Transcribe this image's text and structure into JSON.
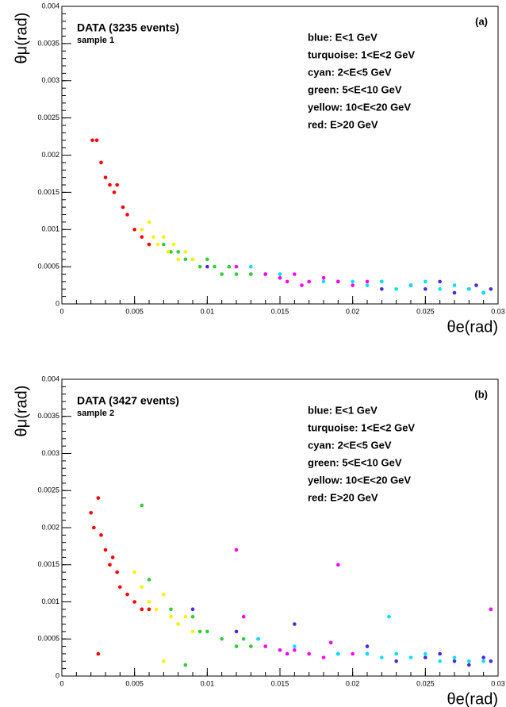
{
  "chart_data": [
    {
      "type": "scatter",
      "title": "DATA  (3235 events)",
      "subtitle": "sample 1",
      "annotation": "(a)",
      "xlabel": "θe(rad)",
      "ylabel": "θμ(rad)",
      "xlim": [
        0,
        0.03
      ],
      "ylim": [
        0,
        0.004
      ],
      "xticks": [
        0,
        0.005,
        0.01,
        0.015,
        0.02,
        0.025,
        0.03
      ],
      "yticks": [
        0,
        0.0005,
        0.001,
        0.0015,
        0.002,
        0.0025,
        0.003,
        0.0035,
        0.004
      ],
      "legend": "upper right",
      "series": [
        {
          "name": "blue: E<1 GeV",
          "color": "#4a2ad8",
          "x": [
            0.01,
            0.014,
            0.019,
            0.022,
            0.024,
            0.025,
            0.026,
            0.027,
            0.028,
            0.0285,
            0.029,
            0.0295
          ],
          "values": [
            0.0005,
            0.0004,
            0.0003,
            0.0002,
            0.00025,
            0.0002,
            0.0003,
            0.00015,
            0.0002,
            0.00025,
            0.00015,
            0.0002
          ]
        },
        {
          "name": "turquoise: 1<E<2 GeV",
          "color": "#ff00ff",
          "x": [
            0.012,
            0.013,
            0.014,
            0.015,
            0.0155,
            0.016,
            0.0165,
            0.017,
            0.018,
            0.019,
            0.02,
            0.021,
            0.022
          ],
          "values": [
            0.0005,
            0.0004,
            0.0004,
            0.00035,
            0.0003,
            0.0004,
            0.00025,
            0.0003,
            0.00035,
            0.0003,
            0.00025,
            0.0003,
            0.0003
          ]
        },
        {
          "name": "cyan: 2<E<5 GeV",
          "color": "#00e0ff",
          "x": [
            0.013,
            0.015,
            0.018,
            0.02,
            0.021,
            0.022,
            0.023,
            0.024,
            0.025,
            0.026,
            0.027,
            0.028,
            0.029
          ],
          "values": [
            0.0005,
            0.0004,
            0.0003,
            0.0003,
            0.00025,
            0.0003,
            0.0002,
            0.00025,
            0.0003,
            0.0002,
            0.00025,
            0.0002,
            0.00015
          ]
        },
        {
          "name": "green: 5<E<10 GeV",
          "color": "#33cc33",
          "x": [
            0.007,
            0.0075,
            0.008,
            0.0085,
            0.009,
            0.0095,
            0.01,
            0.0105,
            0.011,
            0.0115,
            0.012,
            0.013
          ],
          "values": [
            0.0008,
            0.0007,
            0.0007,
            0.0006,
            0.0006,
            0.0005,
            0.0006,
            0.0005,
            0.0004,
            0.0005,
            0.0004,
            0.0004
          ]
        },
        {
          "name": "yellow: 10<E<20 GeV",
          "color": "#f5f500",
          "x": [
            0.0055,
            0.006,
            0.0063,
            0.0066,
            0.007,
            0.0073,
            0.0077,
            0.008,
            0.0085,
            0.009
          ],
          "values": [
            0.001,
            0.0011,
            0.0009,
            0.0008,
            0.0009,
            0.0007,
            0.0008,
            0.0006,
            0.0007,
            0.0006
          ]
        },
        {
          "name": "red: E>20 GeV",
          "color": "#ff0000",
          "x": [
            0.0021,
            0.0024,
            0.0027,
            0.003,
            0.0033,
            0.0036,
            0.0038,
            0.0042,
            0.0045,
            0.005,
            0.0055,
            0.006
          ],
          "values": [
            0.0022,
            0.0022,
            0.0019,
            0.0017,
            0.0016,
            0.0015,
            0.0016,
            0.0013,
            0.0012,
            0.001,
            0.0009,
            0.0008
          ]
        }
      ]
    },
    {
      "type": "scatter",
      "title": "DATA  (3427 events)",
      "subtitle": "sample 2",
      "annotation": "(b)",
      "xlabel": "θe(rad)",
      "ylabel": "θμ(rad)",
      "xlim": [
        0,
        0.03
      ],
      "ylim": [
        0,
        0.004
      ],
      "xticks": [
        0,
        0.005,
        0.01,
        0.015,
        0.02,
        0.025,
        0.03
      ],
      "yticks": [
        0,
        0.0005,
        0.001,
        0.0015,
        0.002,
        0.0025,
        0.003,
        0.0035,
        0.004
      ],
      "legend": "upper right",
      "series": [
        {
          "name": "blue: E<1 GeV",
          "color": "#4a2ad8",
          "x": [
            0.009,
            0.012,
            0.016,
            0.019,
            0.021,
            0.023,
            0.025,
            0.026,
            0.027,
            0.028,
            0.029,
            0.0295
          ],
          "values": [
            0.0009,
            0.0006,
            0.0007,
            0.0003,
            0.0004,
            0.0002,
            0.00025,
            0.0003,
            0.0002,
            0.00015,
            0.00025,
            0.0002
          ]
        },
        {
          "name": "turquoise: 1<E<2 GeV",
          "color": "#ff00ff",
          "x": [
            0.012,
            0.0125,
            0.0135,
            0.014,
            0.015,
            0.0155,
            0.016,
            0.017,
            0.018,
            0.019,
            0.02,
            0.021,
            0.0295,
            0.0185
          ],
          "values": [
            0.0017,
            0.0008,
            0.0005,
            0.0004,
            0.00035,
            0.0003,
            0.00035,
            0.0003,
            0.00025,
            0.0015,
            0.0003,
            0.0003,
            0.0009,
            0.00045
          ]
        },
        {
          "name": "cyan: 2<E<5 GeV",
          "color": "#00e0ff",
          "x": [
            0.0135,
            0.016,
            0.019,
            0.021,
            0.022,
            0.023,
            0.024,
            0.025,
            0.026,
            0.027,
            0.028,
            0.029,
            0.0225
          ],
          "values": [
            0.0005,
            0.0004,
            0.0003,
            0.0003,
            0.00025,
            0.0003,
            0.00025,
            0.0003,
            0.0002,
            0.00025,
            0.0002,
            0.0002,
            0.0008
          ]
        },
        {
          "name": "green: 5<E<10 GeV",
          "color": "#33cc33",
          "x": [
            0.0055,
            0.006,
            0.0075,
            0.008,
            0.009,
            0.0095,
            0.01,
            0.011,
            0.012,
            0.0125,
            0.013,
            0.0085
          ],
          "values": [
            0.0023,
            0.0013,
            0.0009,
            0.0007,
            0.0008,
            0.0006,
            0.0006,
            0.0005,
            0.0004,
            0.0005,
            0.0004,
            0.00015
          ]
        },
        {
          "name": "yellow: 10<E<20 GeV",
          "color": "#f5f500",
          "x": [
            0.005,
            0.0055,
            0.006,
            0.0065,
            0.007,
            0.0075,
            0.008,
            0.0085,
            0.009,
            0.007
          ],
          "values": [
            0.0014,
            0.0012,
            0.001,
            0.0009,
            0.0011,
            0.0008,
            0.0007,
            0.0008,
            0.0006,
            0.0002
          ]
        },
        {
          "name": "red: E>20 GeV",
          "color": "#ff0000",
          "x": [
            0.002,
            0.0022,
            0.0025,
            0.0027,
            0.003,
            0.0033,
            0.0035,
            0.0038,
            0.004,
            0.0045,
            0.005,
            0.0055,
            0.006,
            0.0025
          ],
          "values": [
            0.0022,
            0.002,
            0.0024,
            0.0019,
            0.0017,
            0.0015,
            0.0016,
            0.0014,
            0.0012,
            0.0011,
            0.001,
            0.0009,
            0.0009,
            0.0003
          ]
        }
      ]
    }
  ]
}
